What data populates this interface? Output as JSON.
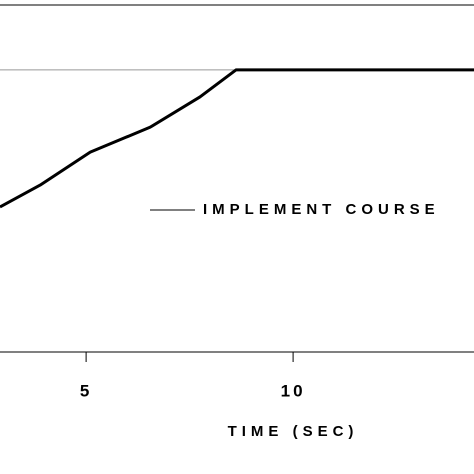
{
  "chart_data": {
    "type": "line",
    "x_label": "TIME (SEC)",
    "x": [
      2.92,
      3.89,
      5.1,
      6.55,
      7.75,
      8.62,
      14.37
    ],
    "series": [
      {
        "name": "IMPLEMENT COURSE",
        "color": "#000000",
        "values": [
          41.8,
          48.1,
          57.6,
          64.8,
          73.5,
          81.3,
          81.3
        ]
      }
    ],
    "xlim": [
      2.92,
      14.37
    ],
    "xticks": [
      5,
      10
    ],
    "ylim": [
      0,
      100
    ],
    "reference_line": 81.3
  }
}
